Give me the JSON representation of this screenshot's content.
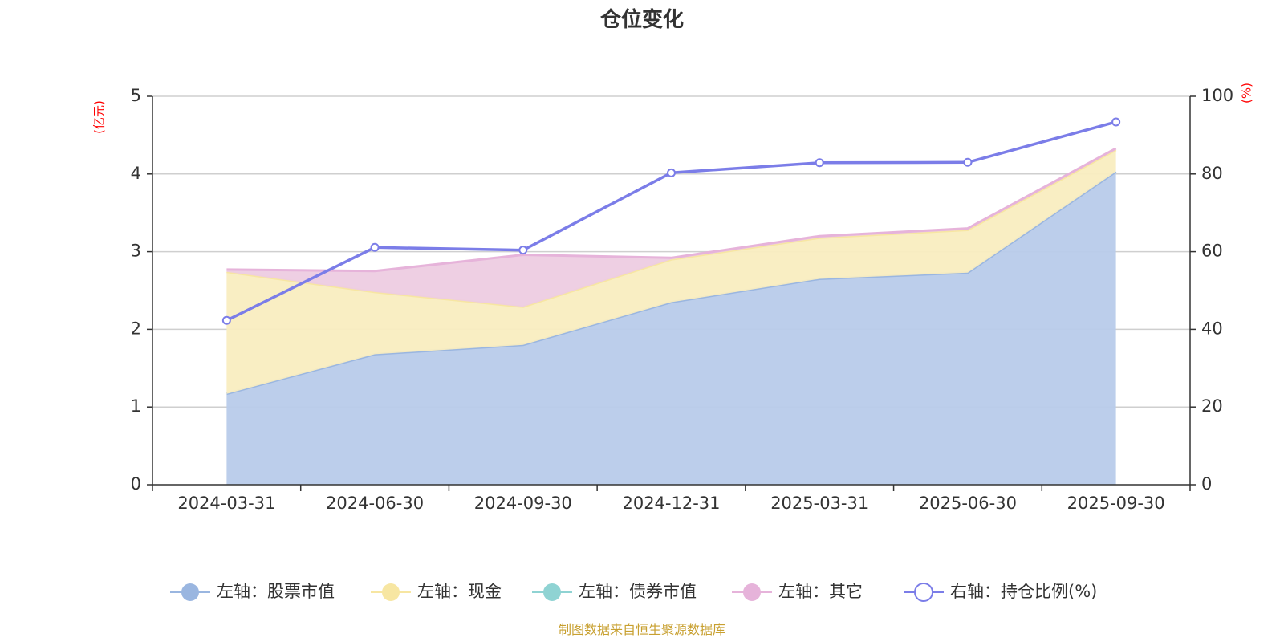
{
  "chart_data": {
    "type": "area",
    "title": "仓位变化",
    "left_axis_unit": "(亿元)",
    "right_axis_unit": "(%)",
    "categories": [
      "2024-03-31",
      "2024-06-30",
      "2024-09-30",
      "2024-12-31",
      "2025-03-31",
      "2025-06-30",
      "2025-09-30"
    ],
    "left_ylim": [
      0,
      5
    ],
    "left_ticks": [
      0,
      1,
      2,
      3,
      4,
      5
    ],
    "right_ylim": [
      0,
      100
    ],
    "right_ticks": [
      0,
      20,
      40,
      60,
      80,
      100
    ],
    "stacked_series": [
      {
        "name": "左轴：股票市值",
        "color": "#9ab6e0",
        "fill": "#b8cbea",
        "values": [
          1.17,
          1.68,
          1.8,
          2.35,
          2.65,
          2.73,
          4.03
        ]
      },
      {
        "name": "左轴：现金",
        "color": "#f7e6a2",
        "fill": "#f9edc0",
        "values": [
          1.57,
          0.8,
          0.49,
          0.55,
          0.53,
          0.55,
          0.28
        ]
      },
      {
        "name": "左轴：债券市值",
        "color": "#8fd3d3",
        "fill": "#b8e3e3",
        "values": [
          0,
          0,
          0,
          0,
          0,
          0,
          0
        ]
      },
      {
        "name": "左轴：其它",
        "color": "#e6b3da",
        "fill": "#edcce2",
        "values": [
          0.03,
          0.27,
          0.67,
          0.02,
          0.02,
          0.02,
          0.02
        ]
      }
    ],
    "line_series": {
      "name": "右轴：持仓比例(%)",
      "axis": "right",
      "color": "#7b7de8",
      "values": [
        42.3,
        61.1,
        60.4,
        80.3,
        82.9,
        83.0,
        93.4
      ]
    },
    "grid": true,
    "legend_position": "bottom"
  },
  "source_note": "制图数据来自恒生聚源数据库"
}
